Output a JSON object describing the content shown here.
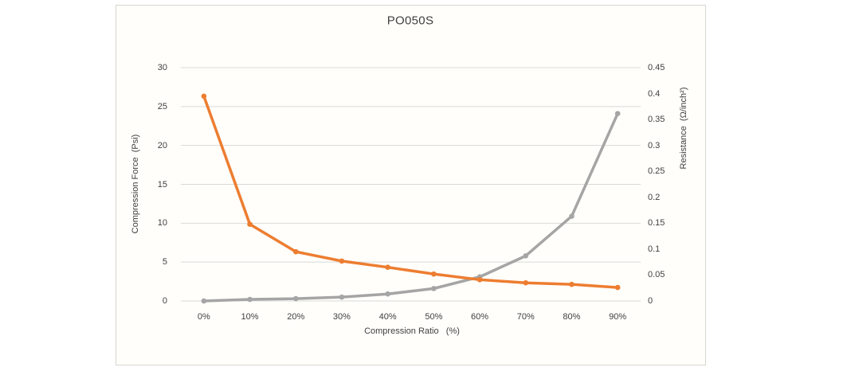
{
  "window": {
    "background": "#ffffff"
  },
  "chart": {
    "background": "#fffefa",
    "border_color": "#d8d6d1",
    "text_color": "#404040",
    "grid_color": "#d9d9d9"
  },
  "chart_data": {
    "type": "line",
    "title": "PO050S",
    "x_axis_label": "Compression Ratio   (%)",
    "categories": [
      "0%",
      "10%",
      "20%",
      "30%",
      "40%",
      "50%",
      "60%",
      "70%",
      "80%",
      "90%"
    ],
    "left_axis": {
      "label": "Compression Force  (Psi)",
      "tick_labels": [
        "0",
        "5",
        "10",
        "15",
        "20",
        "25",
        "30"
      ],
      "range": [
        0,
        30
      ]
    },
    "right_axis": {
      "label": "Resistance  (Ω/inch²)",
      "tick_labels": [
        "0",
        "0.05",
        "0.1",
        "0.15",
        "0.2",
        "0.25",
        "0.3",
        "0.35",
        "0.4",
        "0.45"
      ],
      "range": [
        0,
        0.45
      ]
    },
    "series": [
      {
        "name": "Compression Force",
        "axis": "left",
        "color": "#a5a5a5",
        "marker": "circle",
        "values": [
          0,
          0.2,
          0.3,
          0.5,
          0.9,
          1.6,
          3.1,
          5.8,
          10.9,
          24.1
        ]
      },
      {
        "name": "Resistance",
        "axis": "right",
        "color": "#ed7d31",
        "marker": "circle",
        "values": [
          0.395,
          0.148,
          0.095,
          0.077,
          0.065,
          0.052,
          0.041,
          0.035,
          0.032,
          0.026
        ]
      }
    ],
    "grid": true,
    "legend": "none"
  }
}
